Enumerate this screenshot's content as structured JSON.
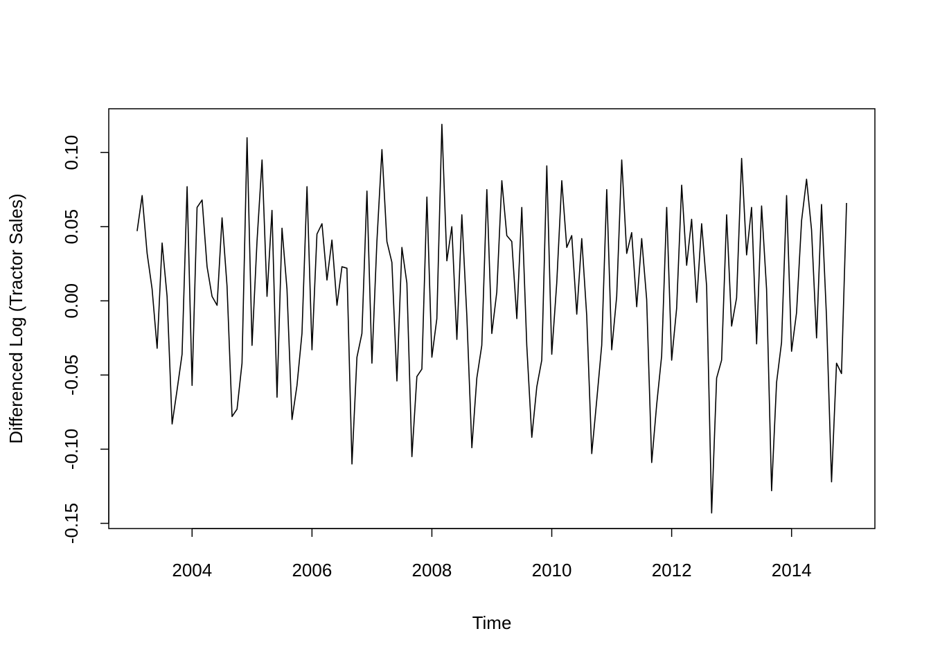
{
  "chart_data": {
    "type": "line",
    "x_label": "Time",
    "y_label": "Differenced Log (Tractor Sales)",
    "x": [
      2003.083,
      2003.167,
      2003.25,
      2003.333,
      2003.417,
      2003.5,
      2003.583,
      2003.667,
      2003.75,
      2003.833,
      2003.917,
      2004,
      2004.083,
      2004.167,
      2004.25,
      2004.333,
      2004.417,
      2004.5,
      2004.583,
      2004.667,
      2004.75,
      2004.833,
      2004.917,
      2005,
      2005.083,
      2005.167,
      2005.25,
      2005.333,
      2005.417,
      2005.5,
      2005.583,
      2005.667,
      2005.75,
      2005.833,
      2005.917,
      2006,
      2006.083,
      2006.167,
      2006.25,
      2006.333,
      2006.417,
      2006.5,
      2006.583,
      2006.667,
      2006.75,
      2006.833,
      2006.917,
      2007,
      2007.083,
      2007.167,
      2007.25,
      2007.333,
      2007.417,
      2007.5,
      2007.583,
      2007.667,
      2007.75,
      2007.833,
      2007.917,
      2008,
      2008.083,
      2008.167,
      2008.25,
      2008.333,
      2008.417,
      2008.5,
      2008.583,
      2008.667,
      2008.75,
      2008.833,
      2008.917,
      2009,
      2009.083,
      2009.167,
      2009.25,
      2009.333,
      2009.417,
      2009.5,
      2009.583,
      2009.667,
      2009.75,
      2009.833,
      2009.917,
      2010,
      2010.083,
      2010.167,
      2010.25,
      2010.333,
      2010.417,
      2010.5,
      2010.583,
      2010.667,
      2010.75,
      2010.833,
      2010.917,
      2011,
      2011.083,
      2011.167,
      2011.25,
      2011.333,
      2011.417,
      2011.5,
      2011.583,
      2011.667,
      2011.75,
      2011.833,
      2011.917,
      2012,
      2012.083,
      2012.167,
      2012.25,
      2012.333,
      2012.417,
      2012.5,
      2012.583,
      2012.667,
      2012.75,
      2012.833,
      2012.917,
      2013,
      2013.083,
      2013.167,
      2013.25,
      2013.333,
      2013.417,
      2013.5,
      2013.583,
      2013.667,
      2013.75,
      2013.833,
      2013.917,
      2014,
      2014.083,
      2014.167,
      2014.25,
      2014.333,
      2014.417,
      2014.5,
      2014.583,
      2014.667,
      2014.75,
      2014.833,
      2014.917
    ],
    "series": [
      {
        "color": "#000000",
        "values": [
          0.047,
          0.071,
          0.032,
          0.008,
          -0.032,
          0.039,
          0.003,
          -0.083,
          -0.06,
          -0.036,
          0.077,
          -0.057,
          0.063,
          0.068,
          0.023,
          0.003,
          -0.003,
          0.056,
          0.01,
          -0.078,
          -0.073,
          -0.042,
          0.11,
          -0.03,
          0.04,
          0.095,
          0.003,
          0.061,
          -0.065,
          0.049,
          0.008,
          -0.08,
          -0.057,
          -0.022,
          0.077,
          -0.033,
          0.045,
          0.052,
          0.014,
          0.041,
          -0.003,
          0.023,
          0.022,
          -0.11,
          -0.038,
          -0.022,
          0.074,
          -0.042,
          0.04,
          0.102,
          0.04,
          0.026,
          -0.054,
          0.036,
          0.012,
          -0.105,
          -0.051,
          -0.046,
          0.07,
          -0.038,
          -0.012,
          0.119,
          0.027,
          0.05,
          -0.026,
          0.058,
          -0.01,
          -0.099,
          -0.052,
          -0.03,
          0.075,
          -0.022,
          0.006,
          0.081,
          0.044,
          0.04,
          -0.012,
          0.063,
          -0.03,
          -0.092,
          -0.058,
          -0.04,
          0.091,
          -0.036,
          0.012,
          0.081,
          0.036,
          0.044,
          -0.009,
          0.042,
          -0.01,
          -0.103,
          -0.067,
          -0.03,
          0.075,
          -0.033,
          0.003,
          0.095,
          0.032,
          0.046,
          -0.004,
          0.042,
          0.001,
          -0.109,
          -0.07,
          -0.037,
          0.063,
          -0.04,
          -0.005,
          0.078,
          0.024,
          0.055,
          -0.001,
          0.052,
          0.01,
          -0.143,
          -0.052,
          -0.04,
          0.058,
          -0.017,
          0.002,
          0.096,
          0.031,
          0.063,
          -0.029,
          0.064,
          0.008,
          -0.128,
          -0.055,
          -0.028,
          0.071,
          -0.034,
          -0.008,
          0.054,
          0.082,
          0.048,
          -0.025,
          0.065,
          -0.011,
          -0.122,
          -0.042,
          -0.049,
          0.066
        ]
      }
    ],
    "xlim": [
      2002.61,
      2015.39
    ],
    "xticks": [
      2004,
      2006,
      2008,
      2010,
      2012,
      2014
    ],
    "ylim": [
      -0.1535,
      0.1295
    ],
    "yticks": [
      -0.15,
      {
        "value": -0.1,
        "label": "-0.10"
      },
      -0.05,
      {
        "value": 0,
        "label": "0.00"
      },
      0.05,
      {
        "value": 0.1,
        "label": "0.10"
      }
    ]
  }
}
